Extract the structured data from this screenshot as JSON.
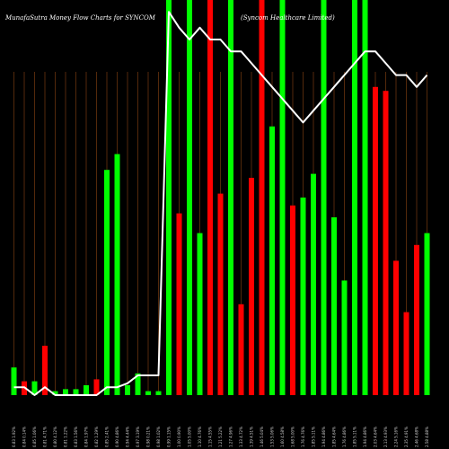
{
  "chart_data": {
    "type": "bar",
    "title": "MunafaSutra  Money Flow  Charts for SYNCOM",
    "subtitle": "(Syncom Healthcare Limited)",
    "colors": {
      "up": "#00ff00",
      "down": "#ff0000",
      "line": "#ffffff",
      "grid": "#8b4513",
      "background": "#000000"
    },
    "ylim": [
      0,
      100
    ],
    "categories": [
      "0.83 1.92%",
      "0.84 0.14%",
      "0.85 1.06%",
      "0.81 4.71%",
      "0.80 4.12%",
      "0.81 1.22%",
      "0.83 1.56%",
      "0.84 1.97%",
      "0.82 1.29%",
      "0.85 2.41%",
      "0.90 4.86%",
      "0.94 4.44%",
      "0.97 3.19%",
      "0.98 0.21%",
      "0.98 1.02%",
      "0.99 1.15%",
      "1.00 0.90%",
      "1.05 5.00%",
      "1.10 4.76%",
      "1.15 4.55%",
      "1.21 5.22%",
      "1.27 4.96%",
      "1.33 4.72%",
      "1.39 4.51%",
      "1.46 5.04%",
      "1.53 5.06%",
      "1.60 4.58%",
      "1.68 5.00%",
      "1.76 4.76%",
      "1.85 5.11%",
      "1.94 4.86%",
      "1.85 4.64%",
      "1.76 4.86%",
      "1.85 5.11%",
      "1.94 4.86%",
      "2.03 4.64%",
      "2.13 4.93%",
      "2.24 5.16%",
      "2.35 4.91%",
      "2.46 4.68%",
      "2.58 4.88%"
    ],
    "series": [
      {
        "values": [
          7,
          3.5,
          3.5,
          12.5,
          1,
          1.5,
          1.5,
          2.5,
          4,
          57,
          61,
          2.5,
          5.5,
          1,
          1,
          100,
          46,
          100,
          41,
          100,
          51,
          100,
          23,
          55,
          100,
          68,
          100,
          48,
          50,
          56,
          100,
          45,
          29,
          100,
          100,
          78,
          77,
          34,
          21,
          38,
          41
        ],
        "directions": [
          "up",
          "down",
          "up",
          "down",
          "up",
          "up",
          "up",
          "up",
          "down",
          "up",
          "up",
          "up",
          "up",
          "up",
          "up",
          "up",
          "down",
          "up",
          "up",
          "down",
          "down",
          "up",
          "down",
          "down",
          "down",
          "up",
          "up",
          "down",
          "up",
          "up",
          "up",
          "up",
          "up",
          "up",
          "up",
          "down",
          "down",
          "down",
          "down",
          "down",
          "up"
        ]
      },
      {
        "name": "",
        "values": [
          2,
          2,
          0,
          2,
          0,
          0,
          0,
          0,
          0,
          2,
          2,
          3,
          5,
          5,
          5,
          97,
          93,
          90,
          93,
          90,
          90,
          87,
          87,
          84,
          81,
          78,
          75,
          72,
          69,
          72,
          75,
          78,
          81,
          84,
          87,
          87,
          84,
          81,
          81,
          78,
          81
        ]
      }
    ]
  }
}
